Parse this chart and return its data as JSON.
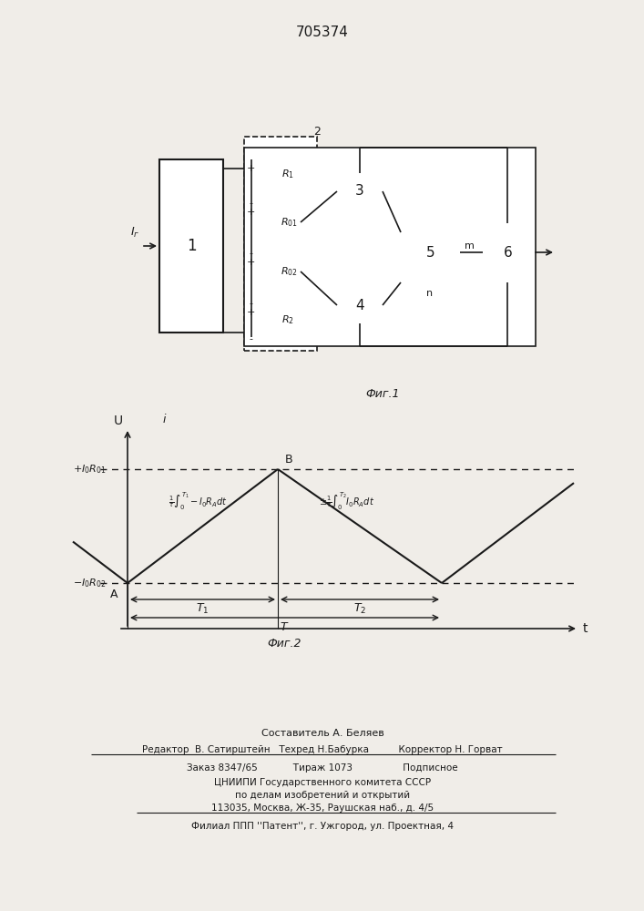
{
  "title": "705374",
  "fig1_caption": "Фиг.1",
  "fig2_caption": "Фиг.2",
  "bg_color": "#f0ede8",
  "line_color": "#1a1a1a",
  "footer_lines": [
    "Составитель А. Беляев",
    "Редактор  В. Сатирштейн   Техред Н.Бабурка          Корректор Н. Горват",
    "Заказ 8347/65            Тираж 1073                 Подписное",
    "ЦНИИПИ Государственного комитета СССР",
    "по делам изобретений и открытий",
    "113035, Москва, Ж-35, Раушская наб., д. 4/5",
    "Филиал ППП ''Патент'', г. Ужгород, ул. Проектная, 4"
  ],
  "block1_label": "1",
  "block3_label": "3",
  "block4_label": "4",
  "block5_label": "5",
  "block6_label": "6",
  "label_R1": "R₁",
  "label_R01": "R₀₁",
  "label_R02": "R₀₂",
  "label_R2": "R₂",
  "label_2": "2",
  "label_Ig": "Iг",
  "label_m": "m",
  "label_n": "n",
  "graph_ylabel": "U",
  "graph_xlabel": "t",
  "graph_y_upper_label": "+I₀R₀₁",
  "graph_y_lower_label": "-I₀R₀₂",
  "graph_label_B": "B",
  "graph_label_A": "A",
  "graph_label_T1": "T₁",
  "graph_label_T2": "T₂",
  "graph_label_T": "T",
  "graph_label_i": "i",
  "integral1": "⁄₁∫-I₀R⁁dt",
  "integral2": "±⁄₁∫I₀R⁁dt"
}
